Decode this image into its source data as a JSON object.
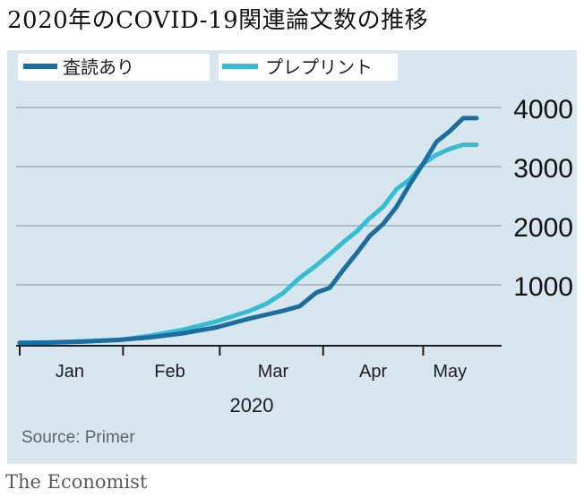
{
  "title": "2020年のCOVID-19関連論文数の推移",
  "source": "Source: Primer",
  "brand": "The Economist",
  "colors": {
    "peer": "#1a6fa0",
    "preprint": "#36bdd3",
    "background": "#d7e6ef",
    "grid": "#9fb1bd"
  },
  "chart_data": {
    "type": "line",
    "title": "2020年のCOVID-19関連論文数の推移",
    "xlabel": "2020",
    "ylabel": "",
    "x_ticks": [
      "Jan",
      "Feb",
      "Mar",
      "Apr",
      "May"
    ],
    "y_ticks": [
      1000,
      2000,
      3000,
      4000
    ],
    "ylim": [
      0,
      4000
    ],
    "xlim": [
      1,
      138
    ],
    "legend": "top",
    "grid": true,
    "series": [
      {
        "name": "査読あり",
        "x": [
          1,
          10,
          20,
          31,
          40,
          50,
          60,
          70,
          80,
          85,
          90,
          94,
          98,
          102,
          106,
          110,
          114,
          118,
          122,
          126,
          130,
          134,
          138
        ],
        "values": [
          20,
          25,
          40,
          70,
          110,
          180,
          280,
          430,
          560,
          640,
          870,
          950,
          1250,
          1530,
          1830,
          2030,
          2320,
          2700,
          3050,
          3420,
          3600,
          3820,
          3820
        ]
      },
      {
        "name": "プレプリント",
        "x": [
          1,
          10,
          20,
          31,
          40,
          50,
          60,
          70,
          75,
          80,
          85,
          90,
          94,
          98,
          102,
          106,
          110,
          114,
          118,
          122,
          126,
          130,
          134,
          138
        ],
        "values": [
          20,
          25,
          45,
          65,
          140,
          240,
          380,
          560,
          680,
          860,
          1120,
          1330,
          1520,
          1720,
          1900,
          2130,
          2320,
          2620,
          2780,
          3050,
          3200,
          3300,
          3370,
          3370
        ]
      }
    ]
  }
}
